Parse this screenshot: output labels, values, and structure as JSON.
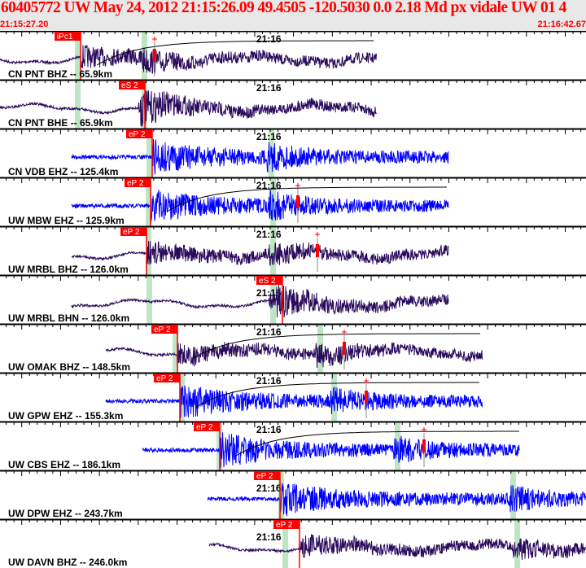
{
  "header": {
    "title": "60405772 UW May 24, 2012 21:15:26.09    49.4505 -120.5030  0.0 2.18 Md px vidale UW 01    4",
    "window_start": "21:15:27.20",
    "window_end": "21:16:42.67",
    "minute_label": "21:16",
    "minute_time": "21:16:00.00"
  },
  "colors": {
    "title": "#ff0000",
    "pick": "#ff0000",
    "band": "#bfe6c4",
    "broadband": "#2a0a5c",
    "short_period": "#0000ff"
  },
  "panels": [
    {
      "label": "CN PNT BHZ -- 65.9km",
      "pick": "iPc1",
      "pick_time": "21:15:37.58",
      "bands": [
        "21:15:37.16",
        "21:15:45.75"
      ],
      "trace_start": "21:15:27.20",
      "trace_end": "21:16:15.73",
      "type": "broadband",
      "coda": true,
      "amp": "21:15:47.10"
    },
    {
      "label": "CN PNT BHE -- 65.9km",
      "pick": "eS 2",
      "pick_time": "21:15:45.86",
      "bands": [
        "21:15:37.16",
        "21:15:45.75"
      ],
      "trace_start": "21:15:27.20",
      "trace_end": "21:16:15.73",
      "type": "broadband",
      "coda": false,
      "amp": null
    },
    {
      "label": "CN VDB EHZ -- 125.4km",
      "pick": "eP 2",
      "pick_time": "21:15:46.80",
      "bands": [
        "21:15:46.38",
        "21:16:02.11"
      ],
      "trace_start": "21:15:36.42",
      "trace_end": "21:16:24.96",
      "type": "short_period",
      "coda": false,
      "amp": null
    },
    {
      "label": "UW MBW EHZ -- 125.9km",
      "pick": "eP 2",
      "pick_time": "21:15:46.59",
      "bands": [
        "21:15:46.28",
        "21:16:02.32"
      ],
      "trace_start": "21:15:36.42",
      "trace_end": "21:16:24.96",
      "type": "short_period",
      "coda": true,
      "amp": "21:16:05.56"
    },
    {
      "label": "UW MRBL BHZ -- 126.0km",
      "pick": "eP 2",
      "pick_time": "21:15:46.07",
      "bands": [
        "21:15:46.28",
        "21:16:02.32"
      ],
      "trace_start": "21:15:36.42",
      "trace_end": "21:16:24.96",
      "type": "broadband",
      "coda": false,
      "amp": "21:16:08.08"
    },
    {
      "label": "UW MRBL BHN -- 126.0km",
      "pick": "eS 2",
      "pick_time": "21:16:03.57",
      "bands": [
        "21:15:46.38",
        "21:16:02.32"
      ],
      "trace_start": "21:15:36.42",
      "trace_end": "21:16:24.96",
      "type": "broadband",
      "coda": false,
      "amp": null
    },
    {
      "label": "UW OMAK BHZ -- 148.5km",
      "pick": "eP 2",
      "pick_time": "21:15:50.05",
      "bands": [
        "21:15:49.74",
        "21:16:08.39"
      ],
      "trace_start": "21:15:40.83",
      "trace_end": "21:16:29.36",
      "type": "broadband",
      "coda": true,
      "amp": "21:16:11.54"
    },
    {
      "label": "UW GPW EHZ -- 155.3km",
      "pick": "eP 2",
      "pick_time": "21:15:50.37",
      "bands": [
        "21:15:50.58",
        "21:16:10.18"
      ],
      "trace_start": "21:15:40.83",
      "trace_end": "21:16:29.36",
      "type": "short_period",
      "coda": true,
      "amp": "21:16:14.37"
    },
    {
      "label": "UW CBS EHZ -- 186.1km",
      "pick": "eP 2",
      "pick_time": "21:15:55.50",
      "bands": [
        "21:15:55.40",
        "21:16:18.35"
      ],
      "trace_start": "21:15:45.54",
      "trace_end": "21:16:34.08",
      "type": "short_period",
      "coda": true,
      "amp": "21:16:21.81"
    },
    {
      "label": "UW DPW EHZ -- 243.7km",
      "pick": "eP 2",
      "pick_time": "21:16:03.26",
      "bands": [
        "21:16:03.36",
        "21:16:33.24"
      ],
      "trace_start": "21:15:53.93",
      "trace_end": "21:16:42.67",
      "type": "short_period",
      "coda": false,
      "amp": null
    },
    {
      "label": "UW DAVN BHZ -- 246.0km",
      "pick": "eP 2",
      "pick_time": "21:16:05.77",
      "bands": [
        "21:16:03.89",
        "21:16:33.76"
      ],
      "trace_start": "21:15:54.14",
      "trace_end": "21:16:42.67",
      "type": "broadband",
      "coda": false,
      "amp": null
    }
  ]
}
